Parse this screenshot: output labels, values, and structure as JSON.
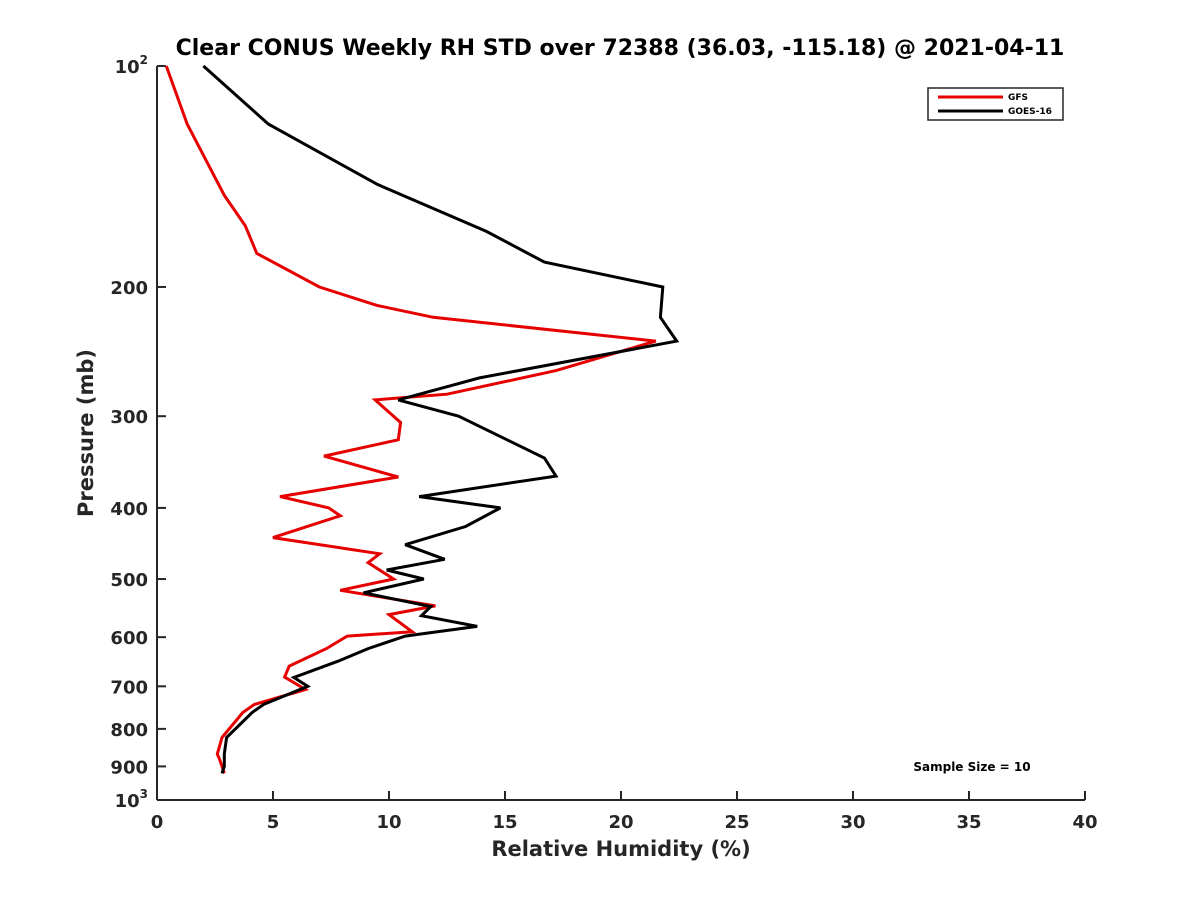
{
  "chart_data": {
    "type": "line",
    "title": "Clear CONUS Weekly RH STD over 72388 (36.03, -115.18) @ 2021-04-11",
    "xlabel": "Relative Humidity (%)",
    "ylabel": "Pressure (mb)",
    "xlim": [
      0,
      40
    ],
    "ylim": [
      100,
      1000
    ],
    "y_scale": "log",
    "y_reversed": true,
    "grid": false,
    "legend_position": "top-right",
    "annotation": "Sample Size = 10",
    "x_ticks": [
      "0",
      "5",
      "10",
      "15",
      "20",
      "25",
      "30",
      "35",
      "40"
    ],
    "y_ticks": [
      {
        "value": 100,
        "label": "10",
        "sup": "2"
      },
      {
        "value": 200,
        "label": "200",
        "sup": ""
      },
      {
        "value": 300,
        "label": "300",
        "sup": ""
      },
      {
        "value": 400,
        "label": "400",
        "sup": ""
      },
      {
        "value": 500,
        "label": "500",
        "sup": ""
      },
      {
        "value": 600,
        "label": "600",
        "sup": ""
      },
      {
        "value": 700,
        "label": "700",
        "sup": ""
      },
      {
        "value": 800,
        "label": "800",
        "sup": ""
      },
      {
        "value": 900,
        "label": "900",
        "sup": ""
      },
      {
        "value": 1000,
        "label": "10",
        "sup": "3"
      }
    ],
    "series": [
      {
        "name": "GFS",
        "color": "#e60000",
        "x": [
          0.4,
          1.3,
          2.9,
          3.8,
          4.3,
          7.0,
          9.5,
          11.9,
          21.5,
          17.2,
          12.5,
          9.4,
          10.5,
          10.4,
          7.2,
          10.4,
          5.3,
          7.4,
          7.9,
          5.0,
          9.6,
          9.1,
          10.2,
          7.9,
          12.0,
          10.0,
          11.0,
          8.2,
          7.3,
          5.7,
          5.5,
          6.4,
          4.2,
          3.7,
          2.8,
          2.6,
          2.7,
          2.8,
          2.9
        ],
        "y": [
          100,
          120,
          150,
          165,
          180,
          200,
          212,
          220,
          237,
          260,
          280,
          285,
          306,
          323,
          340,
          363,
          386,
          400,
          410,
          439,
          462,
          475,
          500,
          518,
          544,
          559,
          590,
          598,
          622,
          657,
          680,
          707,
          741,
          760,
          822,
          866,
          880,
          900,
          920
        ]
      },
      {
        "name": "GOES-16",
        "color": "#000000",
        "x": [
          2.0,
          4.8,
          9.5,
          14.2,
          16.7,
          21.8,
          21.7,
          22.4,
          13.9,
          10.4,
          13.0,
          15.0,
          16.7,
          17.2,
          11.3,
          14.8,
          13.3,
          10.7,
          12.4,
          9.9,
          11.5,
          8.9,
          11.8,
          11.4,
          13.8,
          10.7,
          9.1,
          7.8,
          5.9,
          6.5,
          4.6,
          4.1,
          3.0,
          2.9,
          2.9,
          2.9,
          2.8
        ],
        "y": [
          100,
          120,
          145,
          168,
          185,
          200,
          220,
          237,
          266,
          285,
          300,
          322,
          342,
          362,
          386,
          400,
          424,
          449,
          470,
          486,
          500,
          522,
          545,
          561,
          580,
          598,
          622,
          647,
          681,
          700,
          741,
          760,
          822,
          866,
          880,
          900,
          920
        ]
      }
    ]
  }
}
